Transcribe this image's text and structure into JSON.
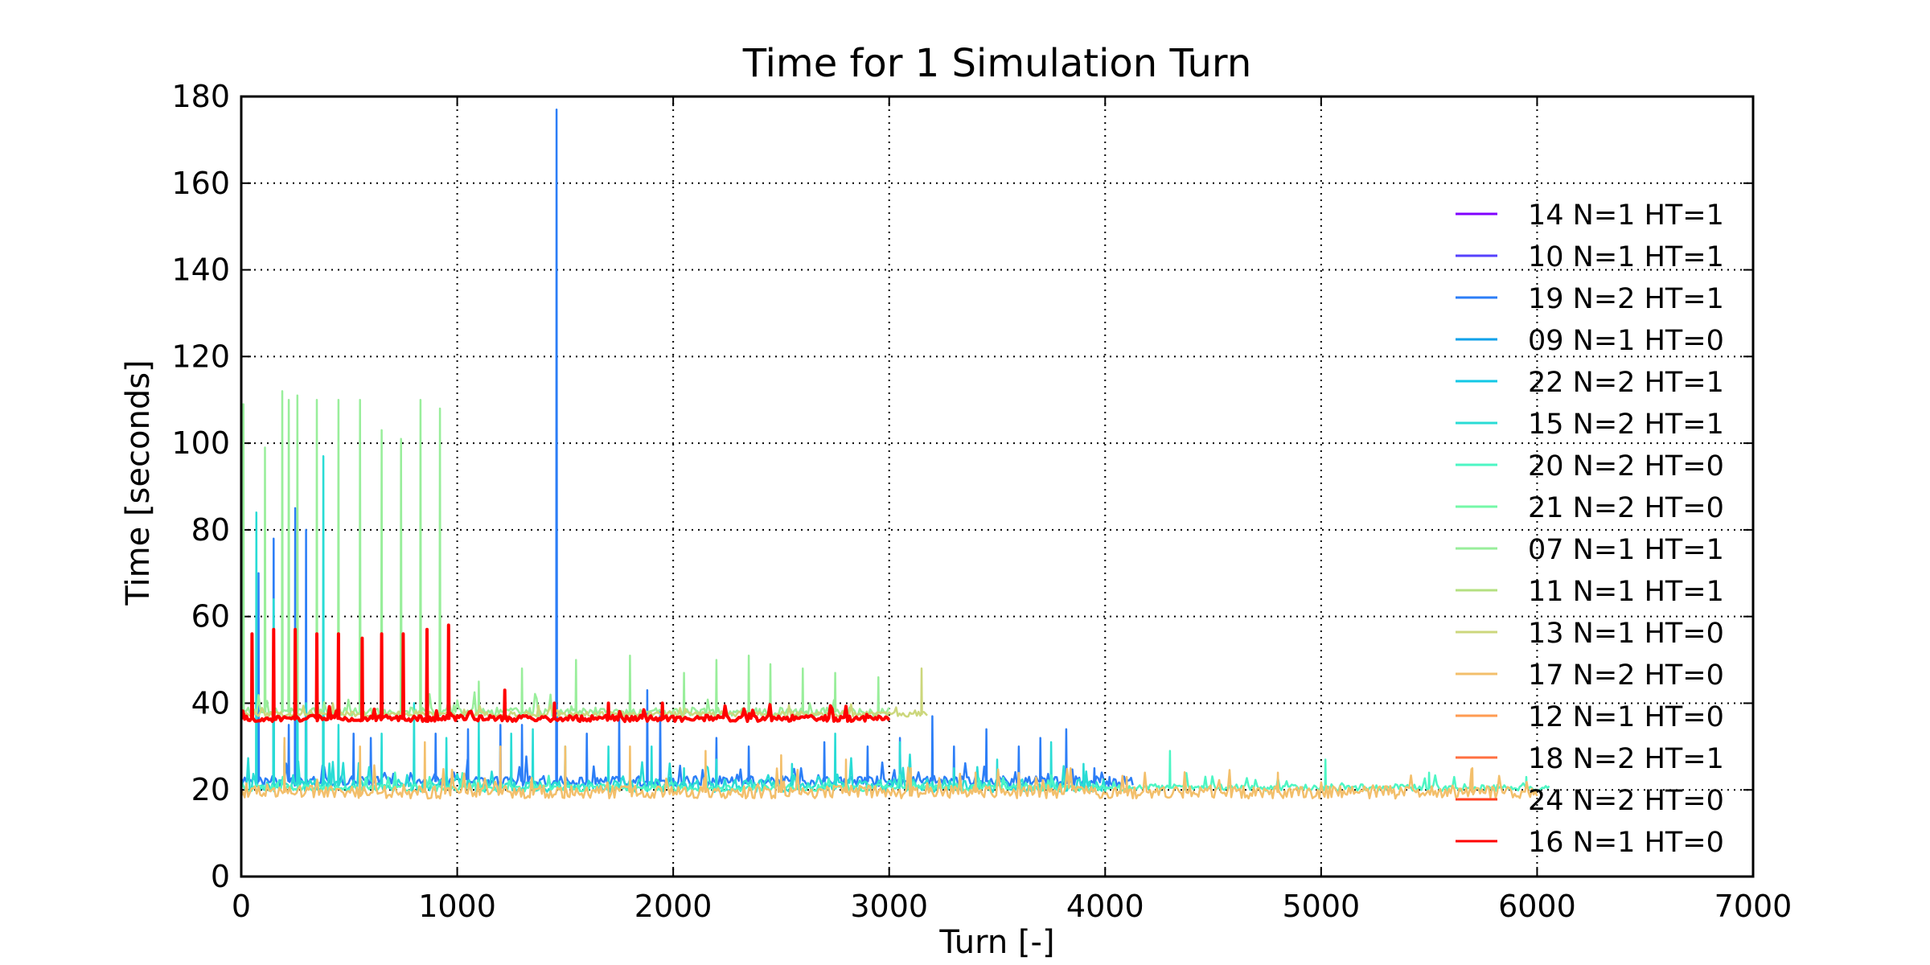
{
  "chart_data": {
    "type": "line",
    "title": "Time for 1 Simulation Turn",
    "xlabel": "Turn [-]",
    "ylabel": "Time [seconds]",
    "xlim": [
      0,
      7000
    ],
    "ylim": [
      0,
      180
    ],
    "xticks": [
      0,
      1000,
      2000,
      3000,
      4000,
      5000,
      6000,
      7000
    ],
    "yticks": [
      0,
      20,
      40,
      60,
      80,
      100,
      120,
      140,
      160,
      180
    ],
    "grid": true,
    "grid_style": "dotted",
    "legend_placement": "right",
    "series": [
      {
        "name": "14 N=1 HT=1",
        "color": "#8000ff",
        "x_end": 0,
        "baseline": 0,
        "noise": 0,
        "spikes": []
      },
      {
        "name": "10 N=1 HT=1",
        "color": "#5641fd",
        "x_end": 0,
        "baseline": 0,
        "noise": 0,
        "spikes": []
      },
      {
        "name": "19 N=2 HT=1",
        "color": "#2c7ef7",
        "x_end": 4130,
        "baseline": 22,
        "noise": 1.2,
        "spikes": [
          [
            80,
            70
          ],
          [
            150,
            78
          ],
          [
            220,
            35
          ],
          [
            250,
            85
          ],
          [
            300,
            80
          ],
          [
            520,
            33
          ],
          [
            600,
            32
          ],
          [
            900,
            33
          ],
          [
            1050,
            34
          ],
          [
            1200,
            35
          ],
          [
            1300,
            35
          ],
          [
            1460,
            177
          ],
          [
            1600,
            33
          ],
          [
            1750,
            38
          ],
          [
            1880,
            43
          ],
          [
            1940,
            38
          ],
          [
            2200,
            32
          ],
          [
            2350,
            30
          ],
          [
            2700,
            31
          ],
          [
            2900,
            30
          ],
          [
            3050,
            32
          ],
          [
            3200,
            37
          ],
          [
            3300,
            30
          ],
          [
            3450,
            34
          ],
          [
            3600,
            30
          ],
          [
            3700,
            32
          ],
          [
            3820,
            34
          ],
          [
            3950,
            25
          ],
          [
            4020,
            23
          ]
        ]
      },
      {
        "name": "09 N=1 HT=0",
        "color": "#0ca1ea",
        "x_end": 0,
        "baseline": 0,
        "noise": 0,
        "spikes": []
      },
      {
        "name": "22 N=2 HT=1",
        "color": "#12c8e6",
        "x_end": 0,
        "baseline": 0,
        "noise": 0,
        "spikes": []
      },
      {
        "name": "15 N=2 HT=1",
        "color": "#29dcd5",
        "x_end": 4000,
        "baseline": 21,
        "noise": 1.5,
        "spikes": [
          [
            70,
            84
          ],
          [
            150,
            64
          ],
          [
            200,
            31
          ],
          [
            260,
            63
          ],
          [
            300,
            40
          ],
          [
            380,
            97
          ],
          [
            450,
            35
          ],
          [
            650,
            33
          ],
          [
            800,
            40
          ],
          [
            950,
            32
          ],
          [
            1100,
            36
          ],
          [
            1250,
            33
          ],
          [
            1350,
            34
          ],
          [
            1500,
            30
          ],
          [
            1700,
            30
          ],
          [
            1900,
            30
          ],
          [
            2050,
            25
          ],
          [
            2200,
            27
          ],
          [
            2550,
            26
          ],
          [
            2750,
            33
          ],
          [
            3050,
            31
          ],
          [
            3300,
            25
          ],
          [
            3500,
            27
          ],
          [
            3750,
            31
          ],
          [
            3900,
            26
          ]
        ]
      },
      {
        "name": "20 N=2 HT=0",
        "color": "#4df6c4",
        "x_end": 6060,
        "baseline": 20.5,
        "noise": 0.8,
        "spikes": [
          [
            4300,
            29
          ],
          [
            5020,
            27
          ],
          [
            5500,
            24
          ],
          [
            5950,
            23
          ]
        ]
      },
      {
        "name": "21 N=2 HT=0",
        "color": "#75f8a8",
        "x_end": 0,
        "baseline": 0,
        "noise": 0,
        "spikes": []
      },
      {
        "name": "07 N=1 HT=1",
        "color": "#99ee9b",
        "x_end": 3000,
        "baseline": 38,
        "noise": 1.0,
        "spikes": [
          [
            10,
            109
          ],
          [
            110,
            99
          ],
          [
            190,
            112
          ],
          [
            220,
            110
          ],
          [
            260,
            111
          ],
          [
            350,
            110
          ],
          [
            450,
            110
          ],
          [
            550,
            110
          ],
          [
            650,
            103
          ],
          [
            740,
            101
          ],
          [
            830,
            110
          ],
          [
            920,
            108
          ],
          [
            1100,
            45
          ],
          [
            1300,
            48
          ],
          [
            1550,
            50
          ],
          [
            1800,
            51
          ],
          [
            2050,
            47
          ],
          [
            2200,
            50
          ],
          [
            2350,
            51
          ],
          [
            2450,
            49
          ],
          [
            2600,
            48
          ],
          [
            2750,
            47
          ],
          [
            2950,
            46
          ]
        ]
      },
      {
        "name": "11 N=1 HT=1",
        "color": "#b4e081",
        "x_end": 0,
        "baseline": 0,
        "noise": 0,
        "spikes": []
      },
      {
        "name": "13 N=1 HT=0",
        "color": "#ccd77c",
        "x_end": 3180,
        "baseline": 37.5,
        "noise": 0.6,
        "spikes": [
          [
            3150,
            48
          ]
        ]
      },
      {
        "name": "17 N=2 HT=0",
        "color": "#f3bf6b",
        "x_end": 6000,
        "baseline": 19.5,
        "noise": 1.5,
        "spikes": [
          [
            200,
            32
          ],
          [
            550,
            30
          ],
          [
            850,
            31
          ],
          [
            1200,
            30
          ],
          [
            1500,
            30
          ],
          [
            1800,
            30
          ],
          [
            2150,
            29
          ],
          [
            2500,
            28
          ],
          [
            2800,
            27
          ],
          [
            3100,
            25
          ],
          [
            3400,
            24
          ],
          [
            4100,
            23
          ],
          [
            4800,
            24
          ],
          [
            5700,
            25
          ]
        ]
      },
      {
        "name": "12 N=1 HT=0",
        "color": "#ff9b52",
        "x_end": 0,
        "baseline": 0,
        "noise": 0,
        "spikes": []
      },
      {
        "name": "18 N=2 HT=1",
        "color": "#ff7041",
        "x_end": 0,
        "baseline": 0,
        "noise": 0,
        "spikes": []
      },
      {
        "name": "24 N=2 HT=0",
        "color": "#ff3e22",
        "x_end": 0,
        "baseline": 0,
        "noise": 0,
        "spikes": []
      },
      {
        "name": "16 N=1 HT=0",
        "color": "#ff0000",
        "x_end": 3000,
        "baseline": 36.5,
        "noise": 0.7,
        "spikes": [
          [
            50,
            56
          ],
          [
            150,
            57
          ],
          [
            250,
            57
          ],
          [
            350,
            56
          ],
          [
            450,
            56
          ],
          [
            560,
            55
          ],
          [
            650,
            56
          ],
          [
            750,
            56
          ],
          [
            860,
            57
          ],
          [
            960,
            58
          ],
          [
            1220,
            43
          ],
          [
            1450,
            40
          ],
          [
            1700,
            40
          ],
          [
            1950,
            40
          ]
        ]
      }
    ]
  }
}
